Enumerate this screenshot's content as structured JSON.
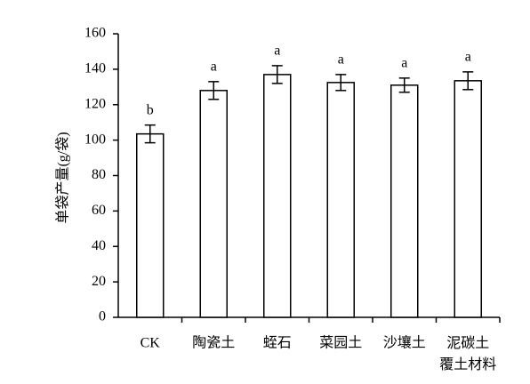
{
  "chart_data": {
    "type": "bar",
    "y_label": "单袋产量(g/袋)",
    "categories": [
      "CK",
      "陶瓷土",
      "蛭石",
      "菜园土",
      "沙壤土",
      "泥碳土\n覆土材料"
    ],
    "values": [
      103.5,
      128,
      137,
      132.5,
      131,
      133.5
    ],
    "errors": [
      5,
      5,
      5,
      4.5,
      4,
      5
    ],
    "annotations": [
      "b",
      "a",
      "a",
      "a",
      "a",
      "a"
    ],
    "color": "#ffffff",
    "ylim": [
      0,
      160
    ],
    "yticks": [
      0,
      20,
      40,
      60,
      80,
      100,
      120,
      140,
      160
    ],
    "grid": false
  }
}
